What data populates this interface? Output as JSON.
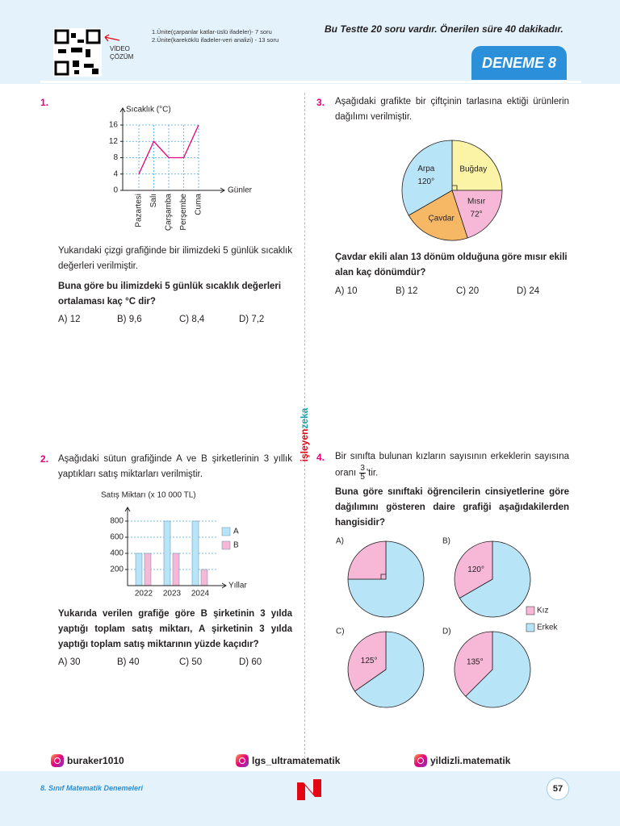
{
  "header": {
    "qr_caption": [
      "VİDEO",
      "ÇÖZÜM"
    ],
    "units": [
      "1.Ünite(çarpanlar katlar-üslü ifadeler)- 7 soru",
      "2.Ünite(kareköklü ifadeler-veri analizi) - 13 soru"
    ],
    "notice": "Bu Testte 20 soru vardır. Önerilen süre 40 dakikadır.",
    "badge": "DENEME 8"
  },
  "brand": [
    "işleyen",
    "zeka"
  ],
  "questions": [
    {
      "number": "1.",
      "chart": {
        "type": "line",
        "ylabel": "Sıcaklık (°C)",
        "xlabel": "Günler",
        "categories": [
          "Pazartesi",
          "Salı",
          "Çarşamba",
          "Perşembe",
          "Cuma"
        ],
        "values": [
          4,
          12,
          8,
          8,
          16
        ],
        "color": "#e6007e",
        "ylim": [
          0,
          16
        ],
        "yticks": [
          0,
          4,
          8,
          12,
          16
        ],
        "grid": true
      },
      "text": "Yukarıdaki çizgi grafiğinde bir ilimizdeki 5 günlük sıcaklık değerleri verilmiştir.",
      "question": "Buna göre bu ilimizdeki 5 günlük sıcaklık değerleri ortalaması kaç °C dir?",
      "options": [
        "A) 12",
        "B) 9,6",
        "C) 8,4",
        "D) 7,2"
      ]
    },
    {
      "number": "2.",
      "intro": "Aşağıdaki sütun grafiğinde A ve B şirketlerinin 3 yıllık yaptıkları satış miktarları verilmiştir.",
      "chart": {
        "type": "bar",
        "ylabel": "Satış Miktarı (x 10 000 TL)",
        "xlabel": "Yıllar",
        "categories": [
          "2022",
          "2023",
          "2024"
        ],
        "series": [
          {
            "name": "A",
            "color": "#b8e4f7",
            "values": [
              400,
              800,
              800
            ]
          },
          {
            "name": "B",
            "color": "#f6b8d6",
            "values": [
              400,
              400,
              200
            ]
          }
        ],
        "ylim": [
          0,
          800
        ],
        "yticks": [
          200,
          400,
          600,
          800
        ],
        "grid": true
      },
      "question": "Yukarıda verilen grafiğe göre B şirketinin 3 yılda yaptığı toplam satış miktarı, A şirketinin 3 yılda yaptığı toplam satış miktarının yüzde kaçıdır?",
      "options": [
        "A) 30",
        "B) 40",
        "C) 50",
        "D) 60"
      ]
    },
    {
      "number": "3.",
      "intro": "Aşağıdaki grafikte bir çiftçinin tarlasına ektiği ürünlerin dağılımı verilmiştir.",
      "chart": {
        "type": "pie",
        "categories": [
          "Buğday",
          "Mısır",
          "Çavdar",
          "Arpa"
        ],
        "values": [
          90,
          72,
          78,
          120
        ],
        "value_labels": [
          null,
          "72°",
          null,
          "120°"
        ],
        "colors": [
          "#fbf3a6",
          "#f6b8d6",
          "#f7b866",
          "#b8e4f7"
        ]
      },
      "question": "Çavdar ekili alan 13 dönüm olduğuna göre mısır ekili alan kaç dönümdür?",
      "options": [
        "A) 10",
        "B) 12",
        "C) 20",
        "D) 24"
      ]
    },
    {
      "number": "4.",
      "intro": "Bir sınıfta bulunan kızların sayısının erkeklerin sayısına oranı",
      "fraction": [
        3,
        5
      ],
      "intro_end": "'tir.",
      "question": "Buna göre sınıftaki öğrencilerin cinsiyetlerine göre dağılımını gösteren daire grafiği aşağıdakilerden hangisidir?",
      "chart": {
        "type": "pie",
        "legend": [
          {
            "name": "Kız",
            "color": "#f6b8d6"
          },
          {
            "name": "Erkek",
            "color": "#b8e4f7"
          }
        ],
        "options": [
          {
            "label": "A)",
            "values": [
              90,
              270
            ]
          },
          {
            "label": "B)",
            "values": [
              120,
              240
            ],
            "value_label": "120°"
          },
          {
            "label": "C)",
            "values": [
              125,
              235
            ],
            "value_label": "125°"
          },
          {
            "label": "D)",
            "values": [
              135,
              225
            ],
            "value_label": "135°"
          }
        ]
      }
    }
  ],
  "footer": {
    "socials": [
      "buraker1010",
      "lgs_ultramatematik",
      "yildizli.matematik"
    ],
    "series": "8. Sınıf Matematik Denemeleri",
    "page": "57"
  }
}
